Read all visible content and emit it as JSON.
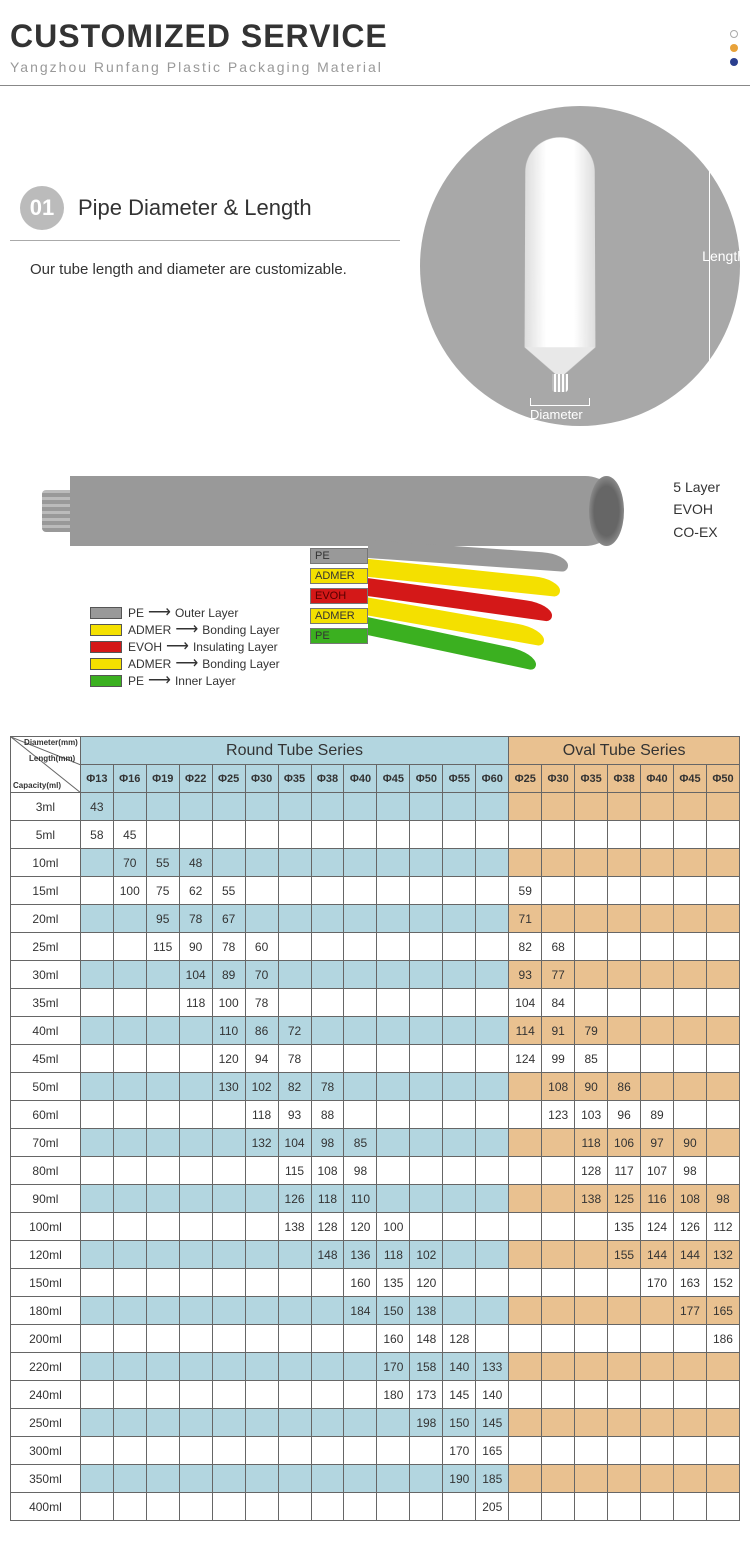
{
  "header": {
    "title": "CUSTOMIZED SERVICE",
    "subtitle": "Yangzhou Runfang Plastic Packaging Material"
  },
  "dots": {
    "c1": "#ffffff",
    "c2": "#e8a23a",
    "c3": "#2a3f8f"
  },
  "section1": {
    "badge": "01",
    "heading": "Pipe Diameter & Length",
    "desc": "Our tube length and diameter are customizable.",
    "length_label": "Length",
    "diameter_label": "Diameter"
  },
  "layers": {
    "side_labels": [
      "5 Layer",
      "EVOH",
      "CO-EX"
    ],
    "strips": [
      {
        "label": "PE",
        "color": "#999999"
      },
      {
        "label": "ADMER",
        "color": "#f4e000"
      },
      {
        "label": "EVOH",
        "color": "#d41818"
      },
      {
        "label": "ADMER",
        "color": "#f4e000"
      },
      {
        "label": "PE",
        "color": "#3bb020"
      }
    ],
    "legend": [
      {
        "sw": "#999999",
        "mat": "PE",
        "role": "Outer Layer"
      },
      {
        "sw": "#f4e000",
        "mat": "ADMER",
        "role": "Bonding Layer"
      },
      {
        "sw": "#d41818",
        "mat": "EVOH",
        "role": "Insulating Layer"
      },
      {
        "sw": "#f4e000",
        "mat": "ADMER",
        "role": "Bonding Layer"
      },
      {
        "sw": "#3bb020",
        "mat": "PE",
        "role": "Inner Layer"
      }
    ]
  },
  "table": {
    "round_header": "Round Tube Series",
    "oval_header": "Oval Tube Series",
    "corner": {
      "w1": "Diameter(mm)",
      "w2": "Length(mm)",
      "w3": "Capacity(ml)"
    },
    "round_dia": [
      "Φ13",
      "Φ16",
      "Φ19",
      "Φ22",
      "Φ25",
      "Φ30",
      "Φ35",
      "Φ38",
      "Φ40",
      "Φ45",
      "Φ50",
      "Φ55",
      "Φ60"
    ],
    "oval_dia": [
      "Φ25",
      "Φ30",
      "Φ35",
      "Φ38",
      "Φ40",
      "Φ45",
      "Φ50"
    ],
    "rows": [
      {
        "cap": "3ml",
        "r": [
          "43",
          "",
          "",
          "",
          "",
          "",
          "",
          "",
          "",
          "",
          "",
          "",
          ""
        ],
        "o": [
          "",
          "",
          "",
          "",
          "",
          "",
          ""
        ]
      },
      {
        "cap": "5ml",
        "r": [
          "58",
          "45",
          "",
          "",
          "",
          "",
          "",
          "",
          "",
          "",
          "",
          "",
          ""
        ],
        "o": [
          "",
          "",
          "",
          "",
          "",
          "",
          ""
        ]
      },
      {
        "cap": "10ml",
        "r": [
          "",
          "70",
          "55",
          "48",
          "",
          "",
          "",
          "",
          "",
          "",
          "",
          "",
          ""
        ],
        "o": [
          "",
          "",
          "",
          "",
          "",
          "",
          ""
        ]
      },
      {
        "cap": "15ml",
        "r": [
          "",
          "100",
          "75",
          "62",
          "55",
          "",
          "",
          "",
          "",
          "",
          "",
          "",
          ""
        ],
        "o": [
          "59",
          "",
          "",
          "",
          "",
          "",
          ""
        ]
      },
      {
        "cap": "20ml",
        "r": [
          "",
          "",
          "95",
          "78",
          "67",
          "",
          "",
          "",
          "",
          "",
          "",
          "",
          ""
        ],
        "o": [
          "71",
          "",
          "",
          "",
          "",
          "",
          ""
        ]
      },
      {
        "cap": "25ml",
        "r": [
          "",
          "",
          "115",
          "90",
          "78",
          "60",
          "",
          "",
          "",
          "",
          "",
          "",
          ""
        ],
        "o": [
          "82",
          "68",
          "",
          "",
          "",
          "",
          ""
        ]
      },
      {
        "cap": "30ml",
        "r": [
          "",
          "",
          "",
          "104",
          "89",
          "70",
          "",
          "",
          "",
          "",
          "",
          "",
          ""
        ],
        "o": [
          "93",
          "77",
          "",
          "",
          "",
          "",
          ""
        ]
      },
      {
        "cap": "35ml",
        "r": [
          "",
          "",
          "",
          "118",
          "100",
          "78",
          "",
          "",
          "",
          "",
          "",
          "",
          ""
        ],
        "o": [
          "104",
          "84",
          "",
          "",
          "",
          "",
          ""
        ]
      },
      {
        "cap": "40ml",
        "r": [
          "",
          "",
          "",
          "",
          "110",
          "86",
          "72",
          "",
          "",
          "",
          "",
          "",
          ""
        ],
        "o": [
          "114",
          "91",
          "79",
          "",
          "",
          "",
          ""
        ]
      },
      {
        "cap": "45ml",
        "r": [
          "",
          "",
          "",
          "",
          "120",
          "94",
          "78",
          "",
          "",
          "",
          "",
          "",
          ""
        ],
        "o": [
          "124",
          "99",
          "85",
          "",
          "",
          "",
          ""
        ]
      },
      {
        "cap": "50ml",
        "r": [
          "",
          "",
          "",
          "",
          "130",
          "102",
          "82",
          "78",
          "",
          "",
          "",
          "",
          ""
        ],
        "o": [
          "",
          "108",
          "90",
          "86",
          "",
          "",
          ""
        ]
      },
      {
        "cap": "60ml",
        "r": [
          "",
          "",
          "",
          "",
          "",
          "118",
          "93",
          "88",
          "",
          "",
          "",
          "",
          ""
        ],
        "o": [
          "",
          "123",
          "103",
          "96",
          "89",
          "",
          ""
        ]
      },
      {
        "cap": "70ml",
        "r": [
          "",
          "",
          "",
          "",
          "",
          "132",
          "104",
          "98",
          "85",
          "",
          "",
          "",
          ""
        ],
        "o": [
          "",
          "",
          "118",
          "106",
          "97",
          "90",
          ""
        ]
      },
      {
        "cap": "80ml",
        "r": [
          "",
          "",
          "",
          "",
          "",
          "",
          "115",
          "108",
          "98",
          "",
          "",
          "",
          ""
        ],
        "o": [
          "",
          "",
          "128",
          "117",
          "107",
          "98",
          ""
        ]
      },
      {
        "cap": "90ml",
        "r": [
          "",
          "",
          "",
          "",
          "",
          "",
          "126",
          "118",
          "110",
          "",
          "",
          "",
          ""
        ],
        "o": [
          "",
          "",
          "138",
          "125",
          "116",
          "108",
          "98"
        ]
      },
      {
        "cap": "100ml",
        "r": [
          "",
          "",
          "",
          "",
          "",
          "",
          "138",
          "128",
          "120",
          "100",
          "",
          "",
          ""
        ],
        "o": [
          "",
          "",
          "",
          "135",
          "124",
          "126",
          "112"
        ]
      },
      {
        "cap": "120ml",
        "r": [
          "",
          "",
          "",
          "",
          "",
          "",
          "",
          "148",
          "136",
          "118",
          "102",
          "",
          ""
        ],
        "o": [
          "",
          "",
          "",
          "155",
          "144",
          "144",
          "132"
        ]
      },
      {
        "cap": "150ml",
        "r": [
          "",
          "",
          "",
          "",
          "",
          "",
          "",
          "",
          "160",
          "135",
          "120",
          "",
          ""
        ],
        "o": [
          "",
          "",
          "",
          "",
          "170",
          "163",
          "152"
        ]
      },
      {
        "cap": "180ml",
        "r": [
          "",
          "",
          "",
          "",
          "",
          "",
          "",
          "",
          "184",
          "150",
          "138",
          "",
          ""
        ],
        "o": [
          "",
          "",
          "",
          "",
          "",
          "177",
          "165"
        ]
      },
      {
        "cap": "200ml",
        "r": [
          "",
          "",
          "",
          "",
          "",
          "",
          "",
          "",
          "",
          "160",
          "148",
          "128",
          ""
        ],
        "o": [
          "",
          "",
          "",
          "",
          "",
          "",
          "186"
        ]
      },
      {
        "cap": "220ml",
        "r": [
          "",
          "",
          "",
          "",
          "",
          "",
          "",
          "",
          "",
          "170",
          "158",
          "140",
          "133"
        ],
        "o": [
          "",
          "",
          "",
          "",
          "",
          "",
          ""
        ]
      },
      {
        "cap": "240ml",
        "r": [
          "",
          "",
          "",
          "",
          "",
          "",
          "",
          "",
          "",
          "180",
          "173",
          "145",
          "140"
        ],
        "o": [
          "",
          "",
          "",
          "",
          "",
          "",
          ""
        ]
      },
      {
        "cap": "250ml",
        "r": [
          "",
          "",
          "",
          "",
          "",
          "",
          "",
          "",
          "",
          "",
          "198",
          "150",
          "145"
        ],
        "o": [
          "",
          "",
          "",
          "",
          "",
          "",
          ""
        ]
      },
      {
        "cap": "300ml",
        "r": [
          "",
          "",
          "",
          "",
          "",
          "",
          "",
          "",
          "",
          "",
          "",
          "170",
          "165"
        ],
        "o": [
          "",
          "",
          "",
          "",
          "",
          "",
          ""
        ]
      },
      {
        "cap": "350ml",
        "r": [
          "",
          "",
          "",
          "",
          "",
          "",
          "",
          "",
          "",
          "",
          "",
          "190",
          "185"
        ],
        "o": [
          "",
          "",
          "",
          "",
          "",
          "",
          ""
        ]
      },
      {
        "cap": "400ml",
        "r": [
          "",
          "",
          "",
          "",
          "",
          "",
          "",
          "",
          "",
          "",
          "",
          "",
          "205"
        ],
        "o": [
          "",
          "",
          "",
          "",
          "",
          "",
          ""
        ]
      }
    ],
    "colors": {
      "round_bg": "#b3d6e0",
      "oval_bg": "#e9c190",
      "border": "#666666"
    }
  }
}
